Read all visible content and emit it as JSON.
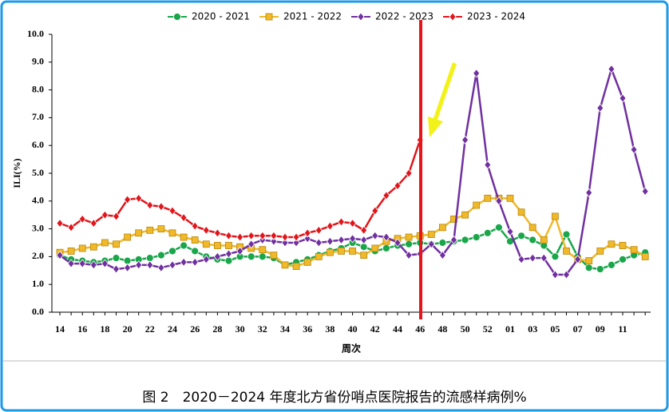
{
  "chart_data": {
    "type": "line",
    "caption": "图 2　2020－2024 年度北方省份哨点医院报告的流感样病例%",
    "x_label": "周次",
    "y_label": "ILI(%)",
    "categories": [
      "14",
      null,
      "16",
      null,
      "18",
      null,
      "20",
      null,
      "22",
      null,
      "24",
      null,
      "26",
      null,
      "28",
      null,
      "30",
      null,
      "32",
      null,
      "34",
      null,
      "36",
      null,
      "38",
      null,
      "40",
      null,
      "42",
      null,
      "44",
      null,
      "46",
      null,
      "48",
      null,
      "50",
      null,
      "52",
      null,
      "01",
      null,
      "03",
      null,
      "05",
      null,
      "07",
      null,
      "09",
      null,
      "11",
      null,
      null
    ],
    "ylim": [
      0,
      10
    ],
    "yticks": [
      {
        "value": 0,
        "label": "0.0"
      },
      {
        "value": 1,
        "label": "1.0"
      },
      {
        "value": 2,
        "label": "2.0"
      },
      {
        "value": 3,
        "label": "3.0"
      },
      {
        "value": 4,
        "label": "4.0"
      },
      {
        "value": 5,
        "label": "5.0"
      },
      {
        "value": 6,
        "label": "6.0"
      },
      {
        "value": 7,
        "label": "7.0"
      },
      {
        "value": 8,
        "label": "8.0"
      },
      {
        "value": 9,
        "label": "9.0"
      },
      {
        "value": 10,
        "label": "10.0"
      }
    ],
    "series": [
      {
        "name": "2020 - 2021",
        "color": "#1aa64a",
        "marker": "circle",
        "values": [
          2.05,
          1.9,
          1.85,
          1.8,
          1.85,
          1.95,
          1.85,
          1.9,
          1.95,
          2.05,
          2.2,
          2.4,
          2.2,
          2.0,
          1.9,
          1.85,
          2.0,
          2.0,
          2.0,
          1.95,
          1.7,
          1.8,
          1.9,
          2.05,
          2.2,
          2.3,
          2.5,
          2.35,
          2.2,
          2.3,
          2.4,
          2.45,
          2.5,
          2.45,
          2.5,
          2.55,
          2.6,
          2.7,
          2.85,
          3.05,
          2.55,
          2.75,
          2.6,
          2.4,
          2.0,
          2.8,
          2.0,
          1.6,
          1.55,
          1.7,
          1.9,
          2.05,
          2.15
        ]
      },
      {
        "name": "2021 - 2022",
        "color": "#f0b92a",
        "marker": "square",
        "values": [
          2.15,
          2.2,
          2.3,
          2.35,
          2.5,
          2.45,
          2.7,
          2.85,
          2.95,
          3.0,
          2.85,
          2.7,
          2.6,
          2.45,
          2.4,
          2.4,
          2.35,
          2.3,
          2.25,
          2.05,
          1.7,
          1.65,
          1.8,
          2.0,
          2.15,
          2.2,
          2.2,
          2.05,
          2.3,
          2.55,
          2.65,
          2.7,
          2.75,
          2.8,
          3.05,
          3.35,
          3.5,
          3.85,
          4.1,
          4.1,
          4.1,
          3.6,
          3.05,
          2.6,
          3.45,
          2.2,
          1.9,
          1.85,
          2.2,
          2.45,
          2.4,
          2.25,
          2.0
        ]
      },
      {
        "name": "2022 - 2023",
        "color": "#7030a0",
        "marker": "diamond",
        "values": [
          2.05,
          1.75,
          1.75,
          1.7,
          1.75,
          1.55,
          1.6,
          1.7,
          1.7,
          1.6,
          1.7,
          1.8,
          1.8,
          1.9,
          2.0,
          2.1,
          2.2,
          2.45,
          2.6,
          2.55,
          2.5,
          2.5,
          2.65,
          2.5,
          2.55,
          2.6,
          2.65,
          2.6,
          2.75,
          2.7,
          2.5,
          2.05,
          2.1,
          2.45,
          2.05,
          2.6,
          6.2,
          8.6,
          5.3,
          4.0,
          2.9,
          1.9,
          1.95,
          1.95,
          1.35,
          1.35,
          1.9,
          4.3,
          7.35,
          8.75,
          7.7,
          5.85,
          4.35
        ]
      },
      {
        "name": "2023 - 2024",
        "color": "#e0161b",
        "marker": "diamond",
        "values": [
          3.2,
          3.05,
          3.35,
          3.2,
          3.5,
          3.45,
          4.05,
          4.1,
          3.85,
          3.8,
          3.65,
          3.4,
          3.1,
          2.95,
          2.85,
          2.75,
          2.7,
          2.75,
          2.75,
          2.75,
          2.7,
          2.7,
          2.85,
          2.95,
          3.1,
          3.25,
          3.2,
          2.95,
          3.65,
          4.2,
          4.55,
          5.0,
          6.2,
          null,
          null,
          null,
          null,
          null,
          null,
          null,
          null,
          null,
          null,
          null,
          null,
          null,
          null,
          null,
          null,
          null,
          null,
          null,
          null
        ]
      }
    ]
  }
}
